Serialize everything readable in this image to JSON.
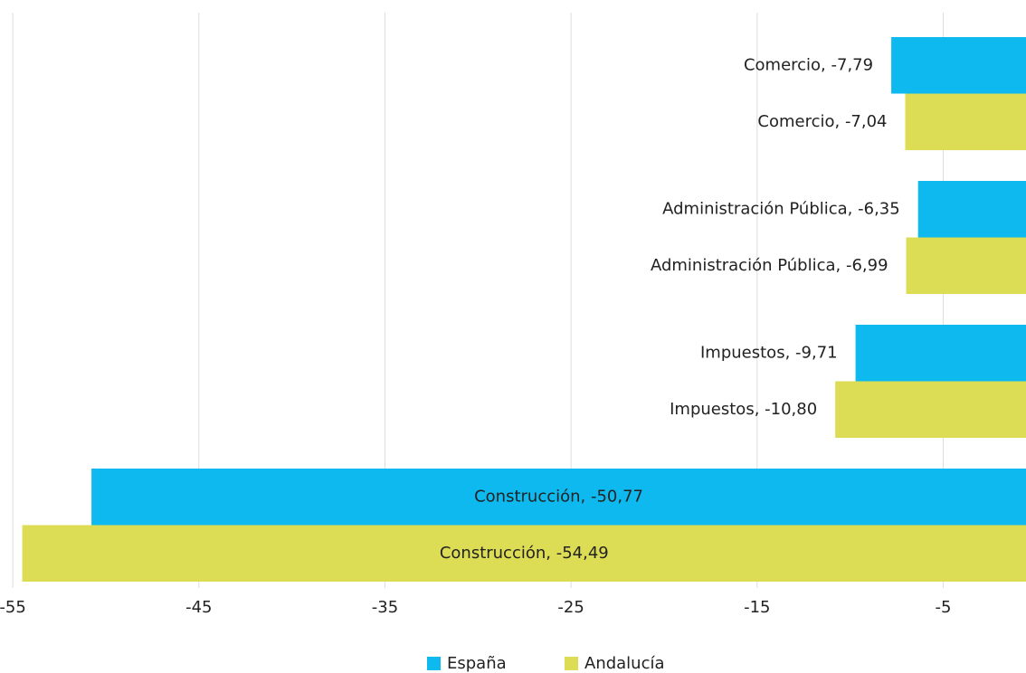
{
  "chart_data": {
    "type": "hbar",
    "categories": [
      "Comercio",
      "Administración Pública",
      "Impuestos",
      "Construcción"
    ],
    "series": [
      {
        "name": "España",
        "color": "#0db9ee",
        "values": [
          -7.79,
          -6.35,
          -9.71,
          -50.77
        ],
        "value_labels": [
          "Comercio, -7,79",
          "Administración Pública, -6,35",
          "Impuestos, -9,71",
          "Construcción, -50,77"
        ]
      },
      {
        "name": "Andalucía",
        "color": "#dcdc55",
        "values": [
          -7.04,
          -6.99,
          -10.8,
          -54.49
        ],
        "value_labels": [
          "Comercio, -7,04",
          "Administración Pública, -6,99",
          "Impuestos, -10,80",
          "Construcción, -54,49"
        ]
      }
    ],
    "xlim": [
      -55.2,
      -0.55
    ],
    "xticks": [
      -55,
      -45,
      -35,
      -25,
      -15,
      -5
    ],
    "grid": true,
    "legend": "bottom"
  }
}
